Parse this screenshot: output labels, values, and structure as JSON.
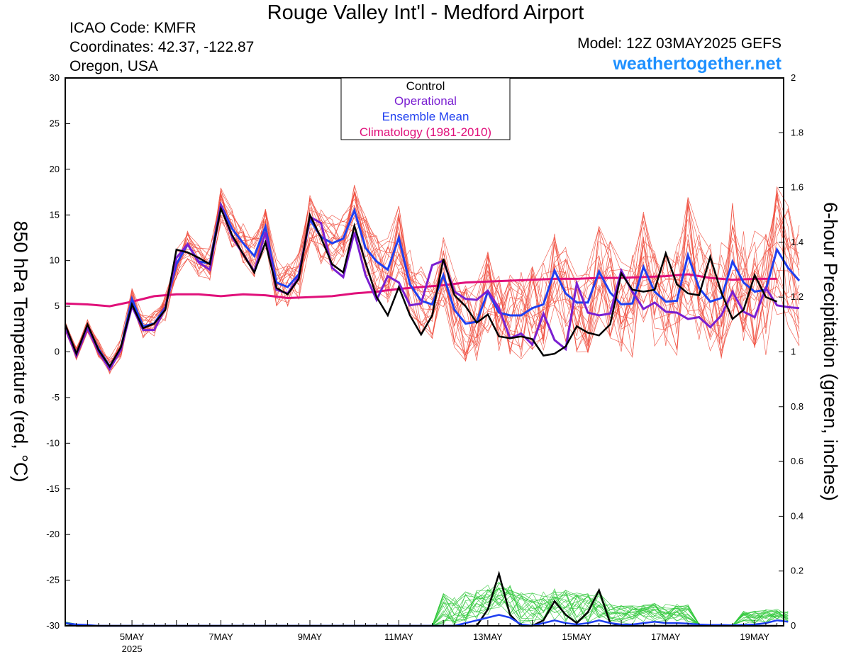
{
  "header": {
    "title": "Rouge Valley Int'l - Medford Airport",
    "icao": "ICAO Code: KMFR",
    "coordinates": "Coordinates: 42.37, -122.87",
    "location": "Oregon, USA",
    "model": "Model: 12Z 03MAY2025 GEFS",
    "website": "weathertogether.net"
  },
  "colors": {
    "control": "#000000",
    "operational": "#7a1fd1",
    "ensemble_mean": "#1f3ff0",
    "climatology": "#e0107a",
    "members_temp": "#f04b3c",
    "members_precip": "#2fc83a",
    "website": "#1e90ff"
  },
  "chart_data": {
    "type": "line",
    "x_unit": "days since 2025-05-03 12Z",
    "x_range": [
      0.5,
      16.65
    ],
    "x_ticks": [
      {
        "x": 2.0,
        "label": "5MAY"
      },
      {
        "x": 4.0,
        "label": "7MAY"
      },
      {
        "x": 6.0,
        "label": "9MAY"
      },
      {
        "x": 8.0,
        "label": "11MAY"
      },
      {
        "x": 10.0,
        "label": "13MAY"
      },
      {
        "x": 12.0,
        "label": "15MAY"
      },
      {
        "x": 14.0,
        "label": "17MAY"
      },
      {
        "x": 16.0,
        "label": "19MAY"
      }
    ],
    "x_year_label": "2025",
    "y_left": {
      "label": "850 hPa Temperature (red, °C)",
      "range": [
        -30,
        30
      ],
      "ticks": [
        -30,
        -25,
        -20,
        -15,
        -10,
        -5,
        0,
        5,
        10,
        15,
        20,
        25,
        30
      ]
    },
    "y_right": {
      "label": "6-hour Precipitation (green, inches)",
      "range": [
        0,
        2
      ],
      "ticks": [
        "0",
        "0.2",
        "0.4",
        "0.6",
        "0.8",
        "1",
        "1.2",
        "1.4",
        "1.6",
        "1.8",
        "2"
      ]
    },
    "legend": [
      "Control",
      "Operational",
      "Ensemble Mean",
      "Climatology (1981-2010)"
    ],
    "temperature": {
      "control": [
        3.0,
        -0.2,
        3.0,
        0.2,
        -1.6,
        0.5,
        5.2,
        2.6,
        3.1,
        4.6,
        11.2,
        10.9,
        10.3,
        9.6,
        15.7,
        12.8,
        10.7,
        8.7,
        12.0,
        7.0,
        6.3,
        8.0,
        15.0,
        12.5,
        9.6,
        8.7,
        13.8,
        9.8,
        6.0,
        4.0,
        7.1,
        4.0,
        1.9,
        4.0,
        10.2,
        6.2,
        5.0,
        3.2,
        4.1,
        1.7,
        1.5,
        1.7,
        1.4,
        -0.4,
        -0.2,
        0.6,
        2.8,
        2.1,
        1.8,
        3.0,
        8.6,
        6.8,
        6.6,
        6.8,
        10.8,
        7.4,
        6.4,
        6.2,
        10.4,
        6.5,
        3.6,
        4.6,
        8.4,
        6.0,
        5.5
      ],
      "operational": [
        2.6,
        -0.4,
        2.6,
        0.0,
        -1.9,
        0.2,
        5.0,
        2.4,
        2.4,
        4.8,
        10.3,
        11.8,
        9.8,
        9.0,
        16.0,
        12.6,
        10.7,
        8.8,
        13.1,
        6.8,
        6.4,
        8.2,
        14.8,
        14.1,
        9.2,
        8.2,
        13.1,
        8.4,
        5.7,
        8.3,
        7.6,
        5.1,
        5.3,
        9.5,
        10.0,
        6.6,
        5.8,
        5.7,
        6.7,
        4.8,
        1.5,
        2.0,
        0.8,
        4.2,
        1.3,
        0.3,
        7.5,
        4.3,
        4.0,
        4.2,
        8.9,
        6.6,
        4.7,
        5.4,
        4.4,
        4.3,
        3.6,
        3.8,
        2.7,
        4.0,
        6.6,
        4.4,
        3.8,
        7.0,
        5.1,
        4.9,
        4.8
      ],
      "ensemble_mean": [
        2.8,
        -0.2,
        2.8,
        0.3,
        -1.6,
        0.4,
        5.8,
        2.8,
        3.1,
        4.9,
        9.6,
        11.8,
        9.9,
        9.7,
        16.1,
        13.5,
        11.9,
        10.5,
        13.7,
        7.6,
        7.1,
        8.5,
        14.5,
        12.6,
        11.9,
        12.4,
        15.5,
        11.4,
        9.9,
        9.0,
        12.5,
        7.4,
        5.6,
        5.2,
        8.4,
        4.6,
        3.1,
        3.3,
        6.6,
        4.3,
        4.0,
        4.0,
        4.8,
        5.2,
        8.9,
        6.4,
        5.4,
        5.4,
        8.8,
        6.5,
        5.2,
        5.3,
        9.3,
        6.6,
        5.5,
        5.6,
        10.6,
        7.0,
        5.5,
        5.9,
        9.9,
        7.6,
        6.6,
        6.8,
        11.2,
        9.2,
        7.8
      ],
      "climatology": [
        5.3,
        5.2,
        5.0,
        5.5,
        6.1,
        6.3,
        6.3,
        6.1,
        6.3,
        6.2,
        5.9,
        6.0,
        6.1,
        6.4,
        6.6,
        6.9,
        7.1,
        7.3,
        7.6,
        7.7,
        7.8,
        7.9,
        8.0,
        8.0,
        8.1,
        8.1,
        8.2,
        8.3,
        8.5,
        8.1,
        7.9,
        8.0,
        8.0
      ],
      "climatology_x": [
        0.5,
        1.0,
        1.5,
        2.0,
        2.5,
        3.0,
        3.5,
        4.0,
        4.5,
        5.0,
        5.5,
        6.0,
        6.5,
        7.0,
        7.5,
        8.0,
        8.5,
        9.0,
        9.5,
        10.0,
        10.5,
        11.0,
        11.5,
        12.0,
        12.5,
        13.0,
        13.5,
        14.0,
        14.5,
        15.0,
        15.5,
        16.0,
        16.5
      ]
    },
    "precipitation": {
      "control": [
        0.01,
        0.0,
        0.0,
        0.0,
        0.0,
        0.0,
        0.0,
        0.0,
        0.0,
        0.0,
        0.0,
        0.0,
        0.0,
        0.0,
        0.0,
        0.0,
        0.0,
        0.0,
        0.0,
        0.0,
        0.0,
        0.0,
        0.0,
        0.0,
        0.0,
        0.0,
        0.0,
        0.0,
        0.0,
        0.0,
        0.0,
        0.0,
        0.0,
        0.0,
        0.0,
        0.0,
        0.0,
        0.0,
        0.06,
        0.19,
        0.04,
        0.0,
        0.0,
        0.02,
        0.09,
        0.04,
        0.01,
        0.05,
        0.13,
        0.01,
        0.0,
        0.0,
        0.0,
        0.0,
        0.0,
        0.0,
        0.0,
        0.0,
        0.0,
        0.0,
        0.0,
        0.0,
        0.0,
        0.0,
        0.0
      ],
      "ensemble_mean": [
        0.01,
        0.005,
        0.003,
        0.0,
        0.0,
        0.0,
        0.0,
        0.0,
        0.0,
        0.0,
        0.0,
        0.0,
        0.0,
        0.0,
        0.0,
        0.0,
        0.0,
        0.0,
        0.0,
        0.0,
        0.0,
        0.0,
        0.0,
        0.0,
        0.0,
        0.0,
        0.0,
        0.0,
        0.0,
        0.0,
        0.0,
        0.0,
        0.0,
        0.0,
        0.0,
        0.0,
        0.01,
        0.02,
        0.03,
        0.04,
        0.03,
        0.005,
        0.0,
        0.01,
        0.02,
        0.01,
        0.005,
        0.01,
        0.02,
        0.01,
        0.005,
        0.005,
        0.01,
        0.015,
        0.01,
        0.01,
        0.008,
        0.005,
        0.003,
        0.003,
        0.002,
        0.003,
        0.005,
        0.01,
        0.02,
        0.015
      ]
    }
  }
}
